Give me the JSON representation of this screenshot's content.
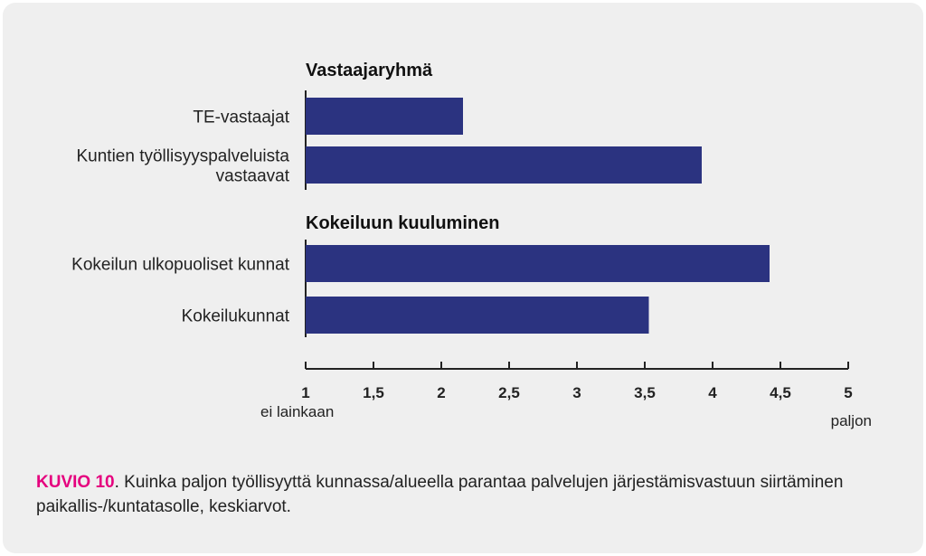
{
  "chart_data": {
    "type": "bar",
    "orientation": "horizontal",
    "groups": [
      {
        "title": "Vastaajaryhmä",
        "categories": [
          {
            "label_lines": [
              "TE-vastaajat"
            ],
            "value": 2.16
          },
          {
            "label_lines": [
              "Kuntien työllisyyspalveluista",
              "vastaavat"
            ],
            "value": 3.92
          }
        ]
      },
      {
        "title": "Kokeiluun kuuluminen",
        "categories": [
          {
            "label_lines": [
              "Kokeilun ulkopuoliset kunnat"
            ],
            "value": 4.42
          },
          {
            "label_lines": [
              "Kokeilukunnat"
            ],
            "value": 3.53
          }
        ]
      }
    ],
    "xlim": [
      1,
      5
    ],
    "x_ticks": [
      1,
      1.5,
      2,
      2.5,
      3,
      3.5,
      4,
      4.5,
      5
    ],
    "x_tick_labels": [
      "1",
      "1,5",
      "2",
      "2,5",
      "3",
      "3,5",
      "4",
      "4,5",
      "5"
    ],
    "x_min_label": "ei lainkaan",
    "x_max_label": "paljon",
    "bar_color": "#2b3380",
    "grid": false
  },
  "caption": {
    "label": "KUVIO 10",
    "text": ". Kuinka paljon työllisyyttä kunnassa/alueella parantaa palvelujen järjestämisvastuun siirtäminen paikallis-/kuntatasolle, keskiarvot."
  }
}
